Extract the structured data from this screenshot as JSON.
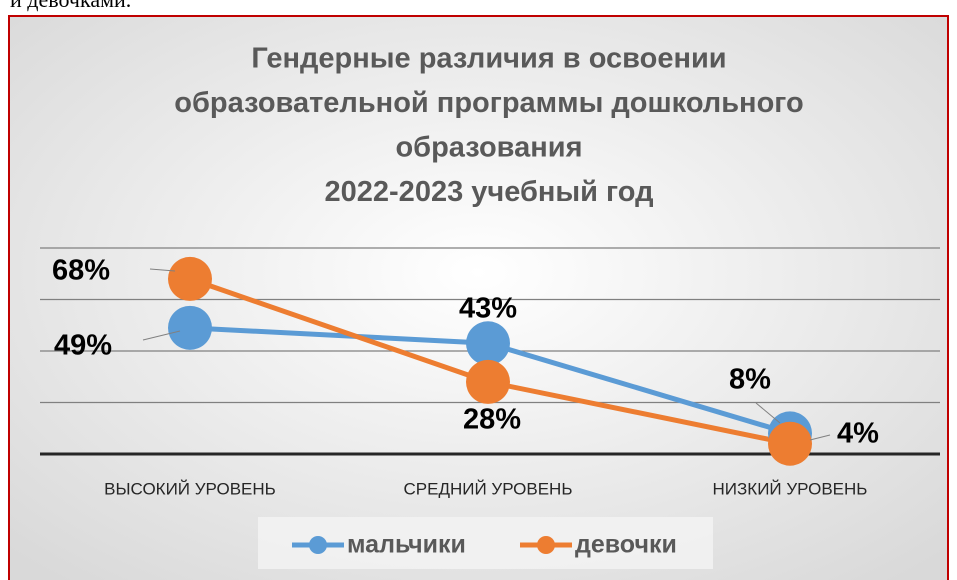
{
  "page_text": "и девочками.",
  "chart_data": {
    "type": "line",
    "title": [
      "Гендерные различия в освоении",
      "образовательной программы дошкольного",
      "образования",
      "2022-2023 учебный год"
    ],
    "categories": [
      "ВЫСОКИЙ УРОВЕНЬ",
      "СРЕДНИЙ УРОВЕНЬ",
      "НИЗКИЙ УРОВЕНЬ"
    ],
    "series": [
      {
        "name": "мальчики",
        "color": "#5b9bd5",
        "values": [
          49,
          43,
          8
        ],
        "value_labels": [
          "49%",
          "43%",
          "8%"
        ]
      },
      {
        "name": "девочки",
        "color": "#ed7d31",
        "values": [
          68,
          28,
          4
        ],
        "value_labels": [
          "68%",
          "28%",
          "4%"
        ]
      }
    ],
    "ylim": [
      0,
      80
    ],
    "yticks": [
      0,
      20,
      40,
      60,
      80
    ],
    "grid": true,
    "legend": "bottom"
  }
}
